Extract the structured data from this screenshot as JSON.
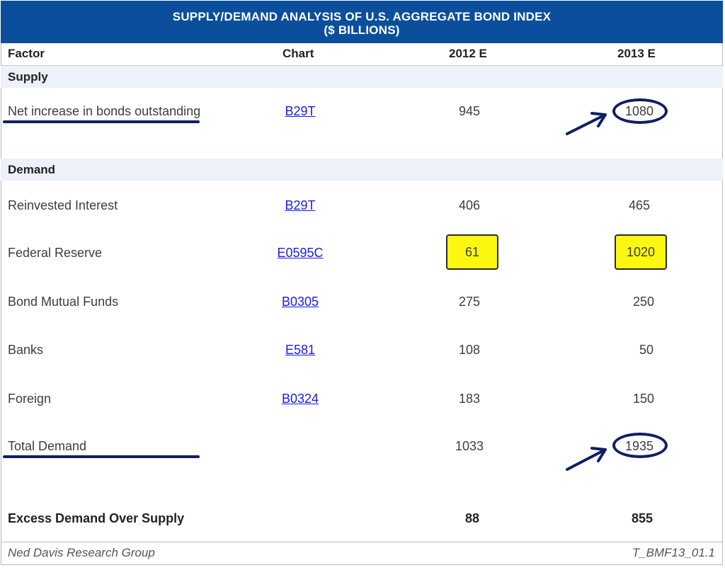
{
  "title": {
    "line1": "SUPPLY/DEMAND ANALYSIS OF U.S. AGGREGATE BOND INDEX",
    "line2": "($ BILLIONS)"
  },
  "columns": {
    "factor": "Factor",
    "chart": "Chart",
    "y2012": "2012 E",
    "y2013": "2013 E"
  },
  "sections": {
    "supply": "Supply",
    "demand": "Demand"
  },
  "rows": {
    "net_increase": {
      "factor": "Net increase in bonds outstanding",
      "chart": "B29T",
      "y2012": "945",
      "y2013": "1080"
    },
    "reinvested": {
      "factor": "Reinvested Interest",
      "chart": "B29T",
      "y2012": "406",
      "y2013": "465"
    },
    "fed": {
      "factor": "Federal Reserve",
      "chart": "E0595C",
      "y2012": "61",
      "y2013": "1020"
    },
    "bond_funds": {
      "factor": "Bond Mutual Funds",
      "chart": "B0305",
      "y2012": "275",
      "y2013": "250"
    },
    "banks": {
      "factor": "Banks",
      "chart": "E581",
      "y2012": "108",
      "y2013": "50"
    },
    "foreign": {
      "factor": "Foreign",
      "chart": "B0324",
      "y2012": "183",
      "y2013": "150"
    },
    "total": {
      "factor": "Total Demand",
      "y2012": "1033",
      "y2013": "1935"
    },
    "excess": {
      "factor": "Excess Demand Over Supply",
      "y2012": "88",
      "y2013": "855"
    }
  },
  "footer": {
    "left": "Ned Davis Research Group",
    "right": "T_BMF13_01.1"
  },
  "colors": {
    "title_bg": "#0b4f9c",
    "highlight": "#fbf710",
    "annotation": "#0f1f62",
    "link": "#1a1aee",
    "section_band": "#edf1fa"
  }
}
